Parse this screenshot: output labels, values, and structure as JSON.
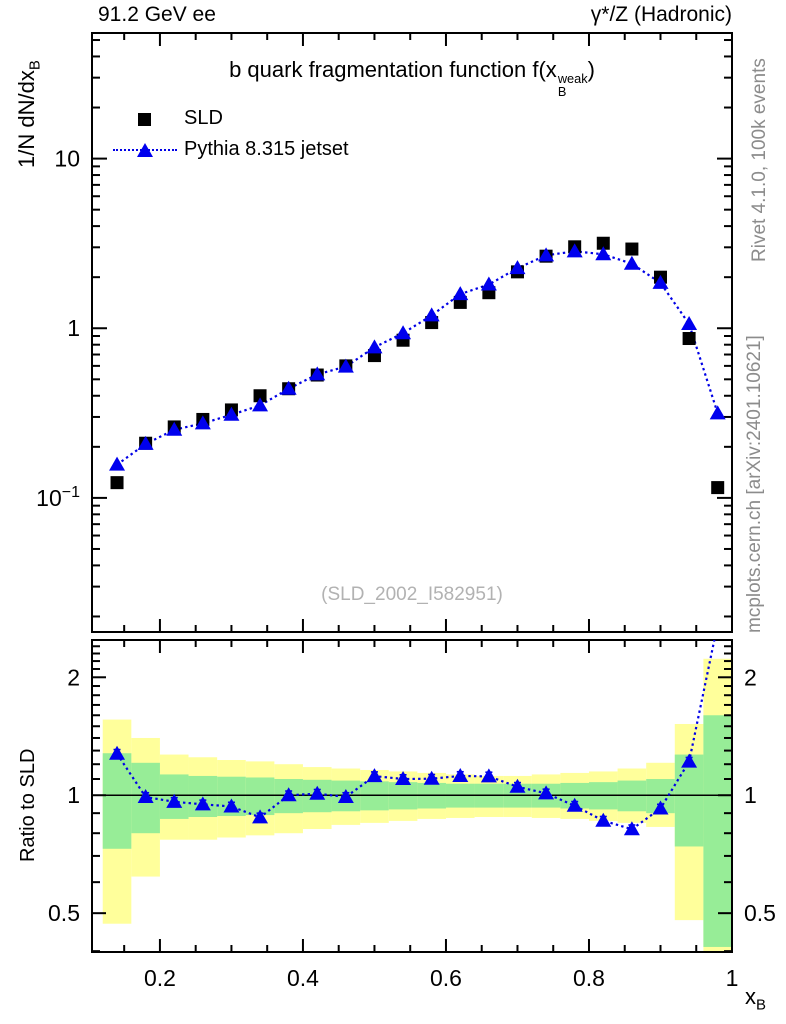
{
  "header": {
    "left": "91.2 GeV ee",
    "right": "γ*/Z (Hadronic)"
  },
  "title": {
    "prefix": "b quark fragmentation function f(x",
    "sup": "weak",
    "sub": "B",
    "suffix": ")"
  },
  "legend": [
    {
      "label": "SLD",
      "marker": "square",
      "color": "#000000"
    },
    {
      "label": "Pythia 8.315 jetset",
      "marker": "triangle",
      "color": "#0000ee",
      "line": "dotted"
    }
  ],
  "watermark": "(SLD_2002_I582951)",
  "side_notes": {
    "top": "Rivet 4.1.0,  100k events",
    "bottom": "mcplots.cern.ch [arXiv:2401.10621]"
  },
  "axes": {
    "x_label_base": "x",
    "x_label_sub": "B",
    "main_y_label_base": "1/N  dN/dx",
    "main_y_label_sub": "B",
    "ratio_y_label": "Ratio to SLD",
    "x_range": [
      0.105,
      1.0
    ],
    "x_ticks": [
      0.2,
      0.4,
      0.6,
      0.8,
      1.0
    ],
    "x_tick_labels": [
      "0.2",
      "0.4",
      "0.6",
      "0.8",
      "1"
    ],
    "x_minor_step": 0.05,
    "main_y_range": [
      0.0162,
      55
    ],
    "main_y_ticks": [
      10,
      1,
      0.1
    ],
    "main_y_tick_labels": [
      {
        "base": "10",
        "sup": ""
      },
      {
        "base": "1",
        "sup": ""
      },
      {
        "base": "10",
        "sup": "−1"
      }
    ],
    "ratio_y_range": [
      0.398,
      2.49
    ],
    "ratio_y_ticks": [
      2,
      1,
      0.5
    ],
    "ratio_y_tick_labels": [
      "2",
      "1",
      "0.5"
    ],
    "scale": "log"
  },
  "chart_data": {
    "type": "scatter",
    "title": "b quark fragmentation function f(x_B^weak)",
    "xlabel": "x_B",
    "ylabel": "1/N dN/dx_B",
    "ratio_ylabel": "Ratio to SLD",
    "x": [
      0.14,
      0.18,
      0.22,
      0.26,
      0.3,
      0.34,
      0.38,
      0.42,
      0.46,
      0.5,
      0.54,
      0.58,
      0.62,
      0.66,
      0.7,
      0.74,
      0.78,
      0.82,
      0.86,
      0.9,
      0.94,
      0.98
    ],
    "series": [
      {
        "name": "SLD",
        "marker": "square",
        "color": "#000000",
        "values": [
          0.123,
          0.21,
          0.262,
          0.29,
          0.33,
          0.4,
          0.44,
          0.53,
          0.6,
          0.69,
          0.85,
          1.08,
          1.42,
          1.62,
          2.15,
          2.66,
          3.02,
          3.17,
          2.93,
          2.0,
          0.87,
          0.115
        ]
      },
      {
        "name": "Pythia 8.315 jetset",
        "marker": "triangle",
        "color": "#0000ee",
        "linestyle": "dotted",
        "values": [
          0.157,
          0.208,
          0.252,
          0.275,
          0.309,
          0.351,
          0.44,
          0.535,
          0.594,
          0.772,
          0.935,
          1.19,
          1.59,
          1.81,
          2.26,
          2.69,
          2.84,
          2.73,
          2.4,
          1.85,
          1.06,
          0.315
        ]
      }
    ],
    "ratio": {
      "name": "Pythia 8.315 jetset / SLD",
      "values": [
        1.276,
        0.99,
        0.962,
        0.948,
        0.936,
        0.878,
        1.0,
        1.009,
        0.99,
        1.119,
        1.1,
        1.102,
        1.12,
        1.117,
        1.051,
        1.011,
        0.94,
        0.861,
        0.819,
        0.925,
        1.218,
        2.739
      ],
      "err_frac": 0.025
    },
    "bands": {
      "bin_half_width": 0.02,
      "yellow_color": "#ffff9b",
      "green_color": "#97ed97",
      "yellow": [
        [
          0.47,
          1.56
        ],
        [
          0.62,
          1.4
        ],
        [
          0.77,
          1.27
        ],
        [
          0.77,
          1.25
        ],
        [
          0.78,
          1.23
        ],
        [
          0.79,
          1.22
        ],
        [
          0.8,
          1.2
        ],
        [
          0.82,
          1.18
        ],
        [
          0.84,
          1.17
        ],
        [
          0.85,
          1.16
        ],
        [
          0.86,
          1.15
        ],
        [
          0.87,
          1.14
        ],
        [
          0.875,
          1.13
        ],
        [
          0.88,
          1.12
        ],
        [
          0.88,
          1.12
        ],
        [
          0.875,
          1.13
        ],
        [
          0.87,
          1.14
        ],
        [
          0.86,
          1.15
        ],
        [
          0.85,
          1.17
        ],
        [
          0.83,
          1.21
        ],
        [
          0.48,
          1.52
        ],
        [
          0.39,
          2.23
        ]
      ],
      "green": [
        [
          0.73,
          1.28
        ],
        [
          0.8,
          1.21
        ],
        [
          0.87,
          1.13
        ],
        [
          0.88,
          1.12
        ],
        [
          0.885,
          1.115
        ],
        [
          0.89,
          1.11
        ],
        [
          0.9,
          1.1
        ],
        [
          0.905,
          1.095
        ],
        [
          0.91,
          1.09
        ],
        [
          0.915,
          1.085
        ],
        [
          0.92,
          1.08
        ],
        [
          0.925,
          1.075
        ],
        [
          0.93,
          1.07
        ],
        [
          0.93,
          1.07
        ],
        [
          0.93,
          1.07
        ],
        [
          0.93,
          1.07
        ],
        [
          0.925,
          1.075
        ],
        [
          0.92,
          1.08
        ],
        [
          0.91,
          1.09
        ],
        [
          0.9,
          1.1
        ],
        [
          0.74,
          1.27
        ],
        [
          0.41,
          1.6
        ]
      ]
    },
    "legend_position": "top-left",
    "grid": false
  },
  "colors": {
    "blue_line": "#0000e6",
    "blue_marker": "#0000ee",
    "black": "#000000"
  }
}
